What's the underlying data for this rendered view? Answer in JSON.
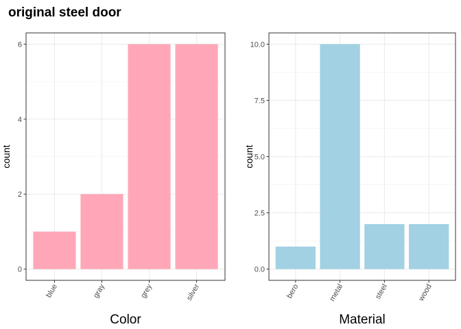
{
  "title": "original steel door",
  "chart_data": [
    {
      "type": "bar",
      "xlabel": "Color",
      "ylabel": "count",
      "categories": [
        "blue",
        "gray",
        "grey",
        "silver"
      ],
      "values": [
        1,
        2,
        6,
        6
      ],
      "ylim": [
        0,
        6.3
      ],
      "yticks": [
        0,
        2,
        4,
        6
      ],
      "ytick_labels": [
        "0",
        "2",
        "4",
        "6"
      ],
      "bar_color": "#ffa7b8",
      "grid": true
    },
    {
      "type": "bar",
      "xlabel": "Material",
      "ylabel": "count",
      "categories": [
        "bero",
        "metal",
        "steel",
        "wood"
      ],
      "values": [
        1,
        10,
        2,
        2
      ],
      "ylim": [
        0,
        10.5
      ],
      "yticks": [
        0,
        2.5,
        5,
        7.5,
        10
      ],
      "ytick_labels": [
        "0.0",
        "2.5",
        "5.0",
        "7.5",
        "10.0"
      ],
      "bar_color": "#a1d1e2",
      "grid": true
    }
  ]
}
